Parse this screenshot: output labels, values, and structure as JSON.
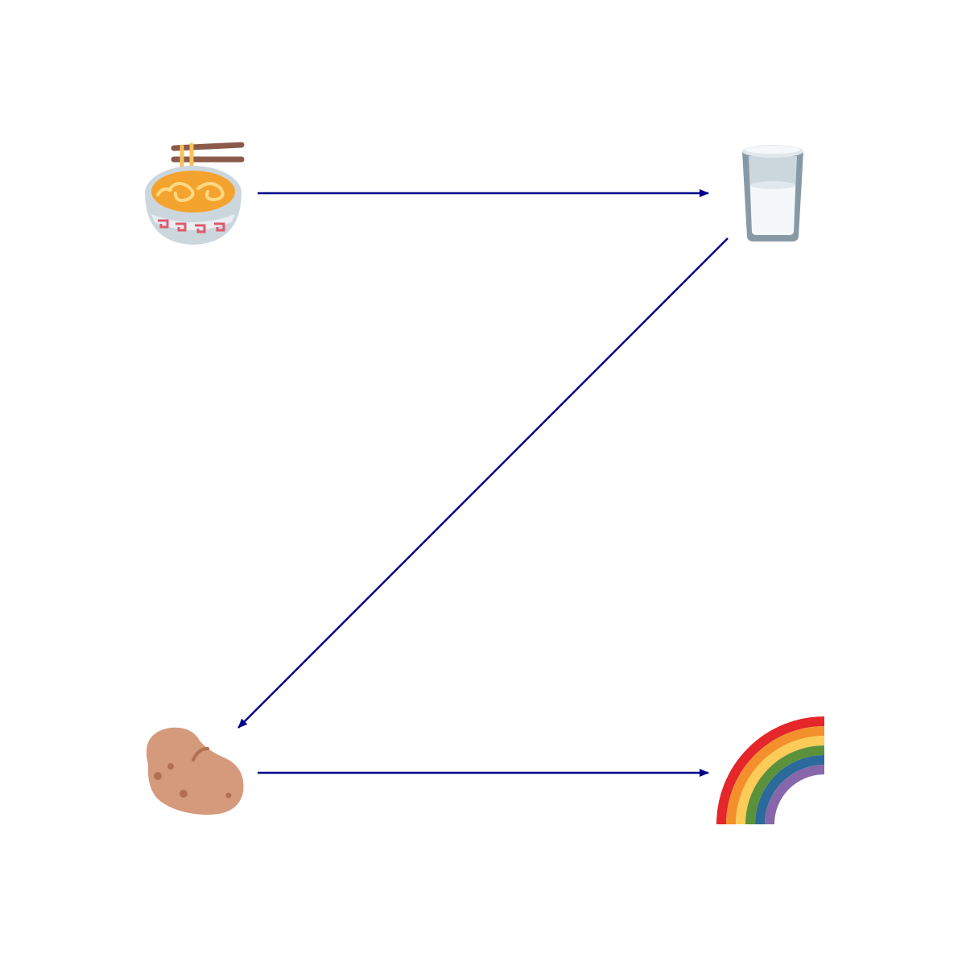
{
  "diagram": {
    "arrow_color": "#00008b",
    "nodes": [
      {
        "id": "noodles",
        "icon": "steaming-bowl-icon"
      },
      {
        "id": "milk",
        "icon": "glass-of-milk-icon"
      },
      {
        "id": "potato",
        "icon": "potato-icon"
      },
      {
        "id": "rainbow",
        "icon": "rainbow-icon"
      }
    ],
    "edges": [
      {
        "from": "noodles",
        "to": "milk"
      },
      {
        "from": "milk",
        "to": "potato"
      },
      {
        "from": "potato",
        "to": "rainbow"
      }
    ]
  }
}
